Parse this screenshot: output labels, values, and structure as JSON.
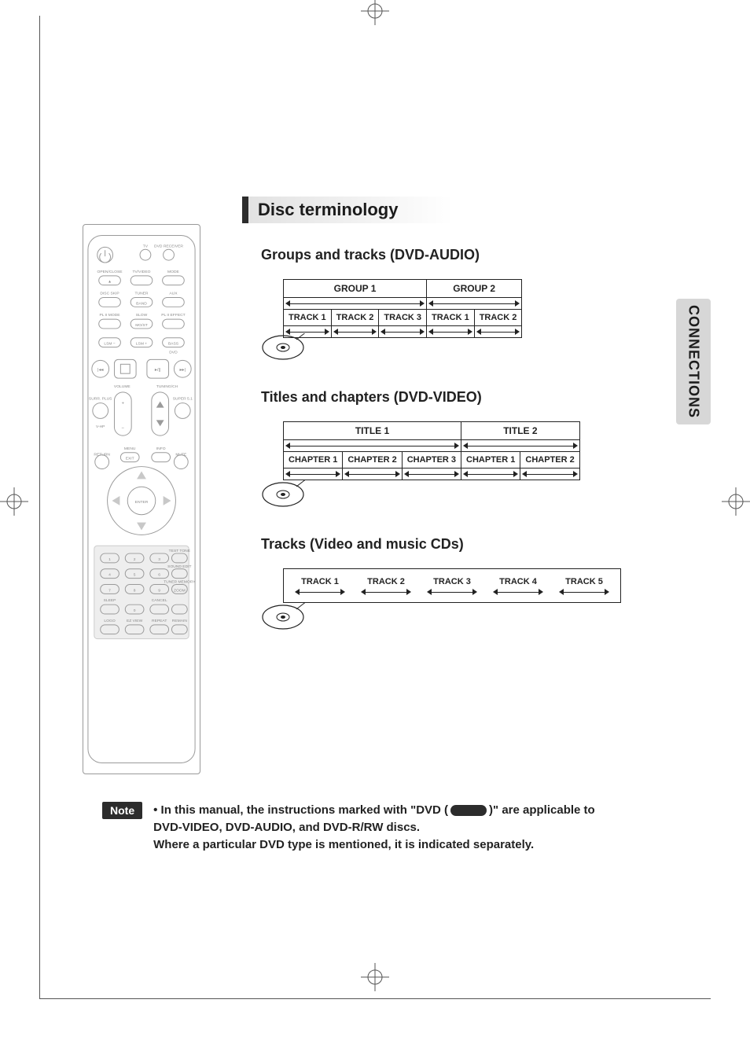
{
  "page": {
    "sidetab": "CONNECTIONS",
    "section_title": "Disc terminology",
    "colors": {
      "accent_bar": "#2c2c2c",
      "sidetab_bg": "#d7d7d7",
      "page_border": "#555555",
      "diagram_border": "#222222"
    }
  },
  "sections": {
    "audio": {
      "heading": "Groups and tracks (DVD-AUDIO)",
      "top": [
        {
          "label": "GROUP 1",
          "items": [
            "TRACK 1",
            "TRACK 2",
            "TRACK 3"
          ]
        },
        {
          "label": "GROUP 2",
          "items": [
            "TRACK 1",
            "TRACK 2"
          ]
        }
      ]
    },
    "video": {
      "heading": "Titles and chapters (DVD-VIDEO)",
      "top": [
        {
          "label": "TITLE 1",
          "items": [
            "CHAPTER 1",
            "CHAPTER 2",
            "CHAPTER 3"
          ]
        },
        {
          "label": "TITLE 2",
          "items": [
            "CHAPTER 1",
            "CHAPTER 2"
          ]
        }
      ]
    },
    "cd": {
      "heading": "Tracks (Video and music CDs)",
      "tracks": [
        "TRACK 1",
        "TRACK 2",
        "TRACK 3",
        "TRACK 4",
        "TRACK 5"
      ]
    }
  },
  "note": {
    "badge": "Note",
    "line1_a": "• In this manual, the instructions marked with \"DVD (",
    "line1_b": ")\" are applicable to",
    "line2": "DVD-VIDEO, DVD-AUDIO, and DVD-R/RW discs.",
    "line3": "Where a particular DVD type is mentioned, it is indicated separately."
  },
  "remote": {
    "labels": {
      "tv": "TV",
      "dvd_receiver": "DVD RECEIVER",
      "open_close": "OPEN/CLOSE",
      "tv_video": "TV/VIDEO",
      "mode": "MODE",
      "disc_skip": "DISC SKIP",
      "tuner": "TUNER",
      "aux": "AUX",
      "band": "BAND",
      "pl_mode": "PL II MODE",
      "slow": "SLOW",
      "pl_effect": "PL II EFFECT",
      "most": "MO/ST",
      "lsm_minus": "LSM −",
      "lsm_plus": "LSM +",
      "bass": "BASS",
      "dvd": "DVD",
      "volume": "VOLUME",
      "tuning": "TUNING/CH",
      "surr": "SURR. PLUS",
      "super51": "SUPER 5.1",
      "vhp": "V-HP",
      "menu": "MENU",
      "info": "INFO",
      "return": "RETURN",
      "exit": "EXIT",
      "mute": "MUTE",
      "enter": "ENTER",
      "test_tone": "TEST TONE",
      "sound_edit": "SOUND EDIT",
      "tuner_mem": "TUNER MEMORY",
      "zoom": "ZOOM",
      "sleep": "SLEEP",
      "cancel": "CANCEL",
      "logo": "LOGO",
      "ez_view": "EZ VIEW",
      "repeat": "REPEAT",
      "remain": "REMAIN"
    }
  }
}
